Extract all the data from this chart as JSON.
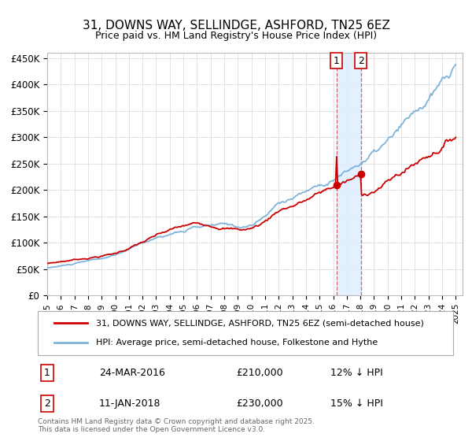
{
  "title": "31, DOWNS WAY, SELLINDGE, ASHFORD, TN25 6EZ",
  "subtitle": "Price paid vs. HM Land Registry's House Price Index (HPI)",
  "ylabel_ticks": [
    "£0",
    "£50K",
    "£100K",
    "£150K",
    "£200K",
    "£250K",
    "£300K",
    "£350K",
    "£400K",
    "£450K"
  ],
  "ytick_vals": [
    0,
    50000,
    100000,
    150000,
    200000,
    250000,
    300000,
    350000,
    400000,
    450000
  ],
  "ylim": [
    0,
    460000
  ],
  "transaction1_year": 2016.23,
  "transaction1_price": 210000,
  "transaction1_date": "24-MAR-2016",
  "transaction1_pct": "12% ↓ HPI",
  "transaction2_year": 2018.03,
  "transaction2_price": 230000,
  "transaction2_date": "11-JAN-2018",
  "transaction2_pct": "15% ↓ HPI",
  "line_red_color": "#cc0000",
  "line_blue_color": "#7fb3d9",
  "legend1": "31, DOWNS WAY, SELLINDGE, ASHFORD, TN25 6EZ (semi-detached house)",
  "legend2": "HPI: Average price, semi-detached house, Folkestone and Hythe",
  "footer": "Contains HM Land Registry data © Crown copyright and database right 2025.\nThis data is licensed under the Open Government Licence v3.0.",
  "bg_color": "#ffffff",
  "grid_color": "#dddddd",
  "shade_color": "#ddeeff"
}
